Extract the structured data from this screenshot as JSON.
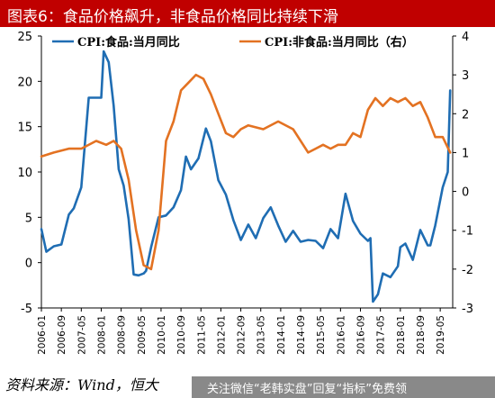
{
  "title": "图表6：食品价格飙升，非食品价格同比持续下滑",
  "source": "资料来源：Wind，恒大",
  "watermark": "关注微信“老韩实盘”回复“指标”免费领",
  "chart_data": {
    "type": "line",
    "legend_placement": "top",
    "grid": false,
    "left_axis": {
      "ylim": [
        -5,
        25
      ],
      "ticks": [
        "-5",
        "0",
        "5",
        "10",
        "15",
        "20",
        "25"
      ]
    },
    "right_axis": {
      "ylim": [
        -3,
        4
      ],
      "ticks": [
        "-3",
        "-2",
        "-1",
        "0",
        "1",
        "2",
        "3",
        "4"
      ]
    },
    "x_ticks": [
      "2006-01",
      "2006-09",
      "2007-05",
      "2008-01",
      "2008-09",
      "2009-05",
      "2010-01",
      "2010-09",
      "2011-05",
      "2012-01",
      "2012-09",
      "2013-05",
      "2014-01",
      "2014-09",
      "2015-05",
      "2016-01",
      "2016-09",
      "2017-05",
      "2018-01",
      "2018-09",
      "2019-05"
    ],
    "series": [
      {
        "name": "CPI:食品:当月同比",
        "axis": "left",
        "color": "#1f6db3",
        "x": [
          "2006-01",
          "2006-03",
          "2006-06",
          "2006-09",
          "2006-12",
          "2007-02",
          "2007-05",
          "2007-08",
          "2007-11",
          "2008-01",
          "2008-02",
          "2008-04",
          "2008-06",
          "2008-08",
          "2008-10",
          "2008-12",
          "2009-02",
          "2009-04",
          "2009-06",
          "2009-07",
          "2009-09",
          "2009-12",
          "2010-03",
          "2010-06",
          "2010-09",
          "2010-11",
          "2011-01",
          "2011-04",
          "2011-07",
          "2011-09",
          "2011-12",
          "2012-03",
          "2012-06",
          "2012-09",
          "2012-12",
          "2013-03",
          "2013-06",
          "2013-09",
          "2013-12",
          "2014-03",
          "2014-06",
          "2014-09",
          "2014-12",
          "2015-03",
          "2015-06",
          "2015-09",
          "2015-12",
          "2016-03",
          "2016-06",
          "2016-09",
          "2016-12",
          "2017-01",
          "2017-02",
          "2017-04",
          "2017-06",
          "2017-09",
          "2017-12",
          "2018-01",
          "2018-03",
          "2018-06",
          "2018-09",
          "2018-12",
          "2019-01",
          "2019-03",
          "2019-06",
          "2019-08",
          "2019-09"
        ],
        "values": [
          3.7,
          1.2,
          1.8,
          2.0,
          5.3,
          6.0,
          8.3,
          18.2,
          18.2,
          18.2,
          23.3,
          22.1,
          17.3,
          10.3,
          8.5,
          4.8,
          -1.3,
          -1.4,
          -1.2,
          -0.9,
          1.7,
          5.0,
          5.2,
          6.1,
          8.0,
          11.7,
          10.3,
          11.5,
          14.8,
          13.4,
          9.1,
          7.5,
          4.7,
          2.5,
          4.2,
          2.7,
          4.9,
          6.1,
          4.1,
          2.3,
          3.5,
          2.3,
          2.5,
          2.4,
          1.6,
          3.7,
          2.7,
          7.6,
          4.6,
          3.2,
          2.4,
          2.7,
          -4.3,
          -3.5,
          -1.2,
          -1.6,
          -0.4,
          1.7,
          2.1,
          0.3,
          3.6,
          1.9,
          1.9,
          4.1,
          8.3,
          10.0,
          19.0
        ]
      },
      {
        "name": "CPI:非食品:当月同比（右）",
        "axis": "right",
        "color": "#e37222",
        "x": [
          "2006-01",
          "2006-06",
          "2006-12",
          "2007-05",
          "2007-11",
          "2008-03",
          "2008-06",
          "2008-09",
          "2008-12",
          "2009-03",
          "2009-06",
          "2009-09",
          "2009-12",
          "2010-03",
          "2010-06",
          "2010-09",
          "2010-12",
          "2011-03",
          "2011-06",
          "2011-09",
          "2011-12",
          "2012-03",
          "2012-06",
          "2012-09",
          "2012-12",
          "2013-06",
          "2013-12",
          "2014-06",
          "2014-12",
          "2015-03",
          "2015-06",
          "2015-09",
          "2015-12",
          "2016-03",
          "2016-06",
          "2016-09",
          "2016-12",
          "2017-03",
          "2017-06",
          "2017-09",
          "2017-12",
          "2018-03",
          "2018-06",
          "2018-09",
          "2018-12",
          "2019-03",
          "2019-06",
          "2019-09"
        ],
        "values": [
          0.9,
          1.0,
          1.1,
          1.1,
          1.3,
          1.2,
          1.3,
          1.1,
          0.3,
          -1.0,
          -1.9,
          -2.0,
          -1.0,
          1.3,
          1.8,
          2.6,
          2.8,
          3.0,
          2.9,
          2.5,
          2.0,
          1.5,
          1.4,
          1.6,
          1.7,
          1.6,
          1.8,
          1.6,
          1.0,
          1.1,
          1.2,
          1.1,
          1.2,
          1.2,
          1.5,
          1.4,
          2.1,
          2.4,
          2.2,
          2.4,
          2.3,
          2.4,
          2.2,
          2.3,
          1.9,
          1.4,
          1.4,
          1.0
        ]
      }
    ]
  }
}
